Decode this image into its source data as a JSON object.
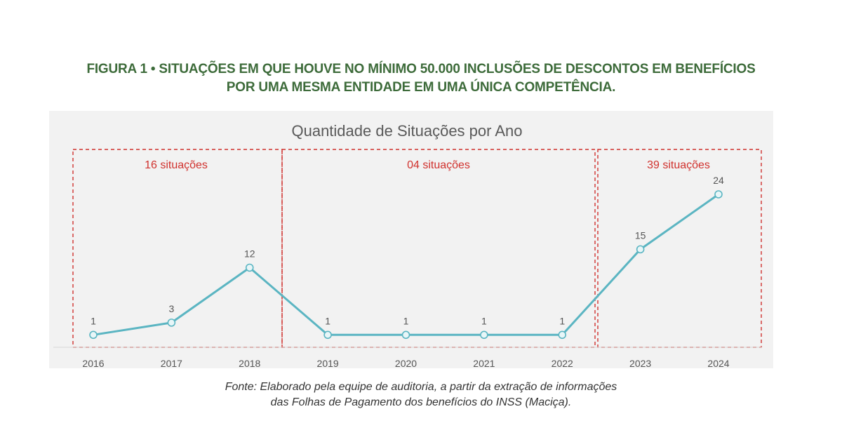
{
  "figure": {
    "title_line1": "FIGURA 1 • SITUAÇÕES EM QUE HOUVE NO MÍNIMO 50.000 INCLUSÕES DE DESCONTOS EM BENEFÍCIOS",
    "title_line2": "POR UMA MESMA ENTIDADE EM UMA ÚNICA COMPETÊNCIA.",
    "source_line1": "Fonte: Elaborado pela equipe de auditoria, a partir da extração de informações",
    "source_line2": "das Folhas de Pagamento dos benefícios do INSS (Maciça)."
  },
  "colors": {
    "title": "#3d6b3a",
    "line": "#5bb5c2",
    "marker_fill": "#e8f6f8",
    "annotation": "#d0312d",
    "panel_bg": "#f2f2f2",
    "tick_text": "#555555"
  },
  "chart_data": {
    "type": "line",
    "title": "Quantidade de Situações por Ano",
    "categories": [
      "2016",
      "2017",
      "2018",
      "2019",
      "2020",
      "2021",
      "2022",
      "2023",
      "2024"
    ],
    "series": [
      {
        "values": [
          1,
          3,
          12,
          1,
          1,
          1,
          1,
          15,
          24
        ]
      }
    ],
    "data_labels": [
      "1",
      "3",
      "12",
      "1",
      "1",
      "1",
      "1",
      "15",
      "24"
    ],
    "xlabel": "",
    "ylabel": "",
    "ylim": [
      0,
      24
    ],
    "y_axis_visible": false,
    "grid": false,
    "legend": "none",
    "groups": [
      {
        "label": "16 situações",
        "from": "2016",
        "to": "2018"
      },
      {
        "label": "04 situações",
        "from": "2019",
        "to": "2022"
      },
      {
        "label": "39 situações",
        "from": "2023",
        "to": "2024"
      }
    ]
  }
}
